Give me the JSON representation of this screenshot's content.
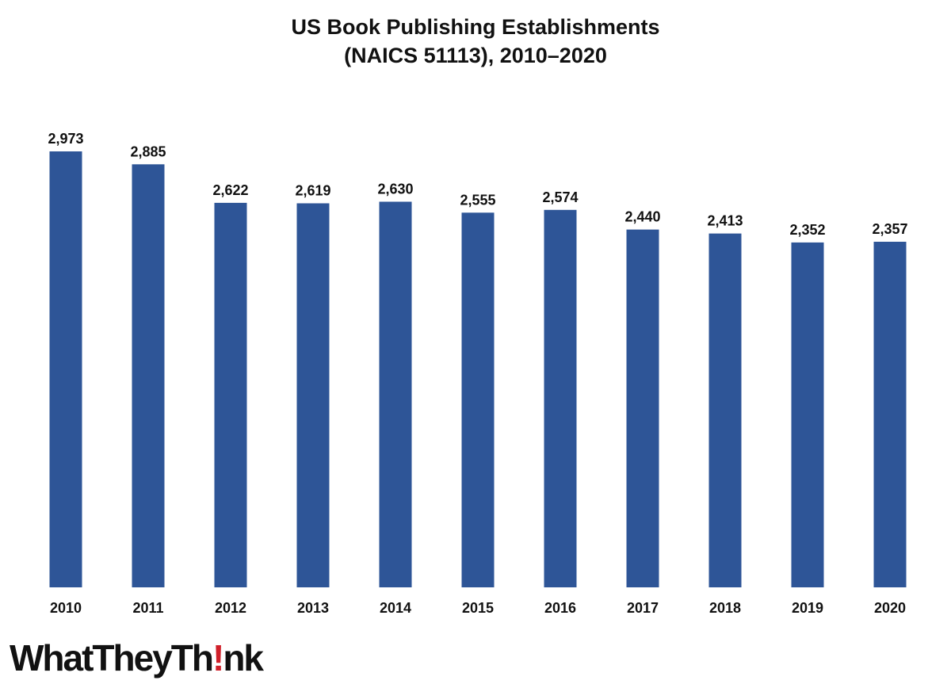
{
  "chart_data": {
    "type": "bar",
    "title_line1": "US Book Publishing Establishments",
    "title_line2": "(NAICS 51113), 2010–2020",
    "categories": [
      "2010",
      "2011",
      "2012",
      "2013",
      "2014",
      "2015",
      "2016",
      "2017",
      "2018",
      "2019",
      "2020"
    ],
    "values": [
      2973,
      2885,
      2622,
      2619,
      2630,
      2555,
      2574,
      2440,
      2413,
      2352,
      2357
    ],
    "data_labels": [
      "2,973",
      "2,885",
      "2,622",
      "2,619",
      "2,630",
      "2,555",
      "2,574",
      "2,440",
      "2,413",
      "2,352",
      "2,357"
    ],
    "ylim": [
      0,
      2973
    ],
    "grid": false,
    "legend": "none",
    "bar_color": "#2e5597"
  },
  "logo": {
    "text_before": "WhatTheyTh",
    "mark": "!",
    "text_after": "nk",
    "accent_color": "#d0202a"
  }
}
